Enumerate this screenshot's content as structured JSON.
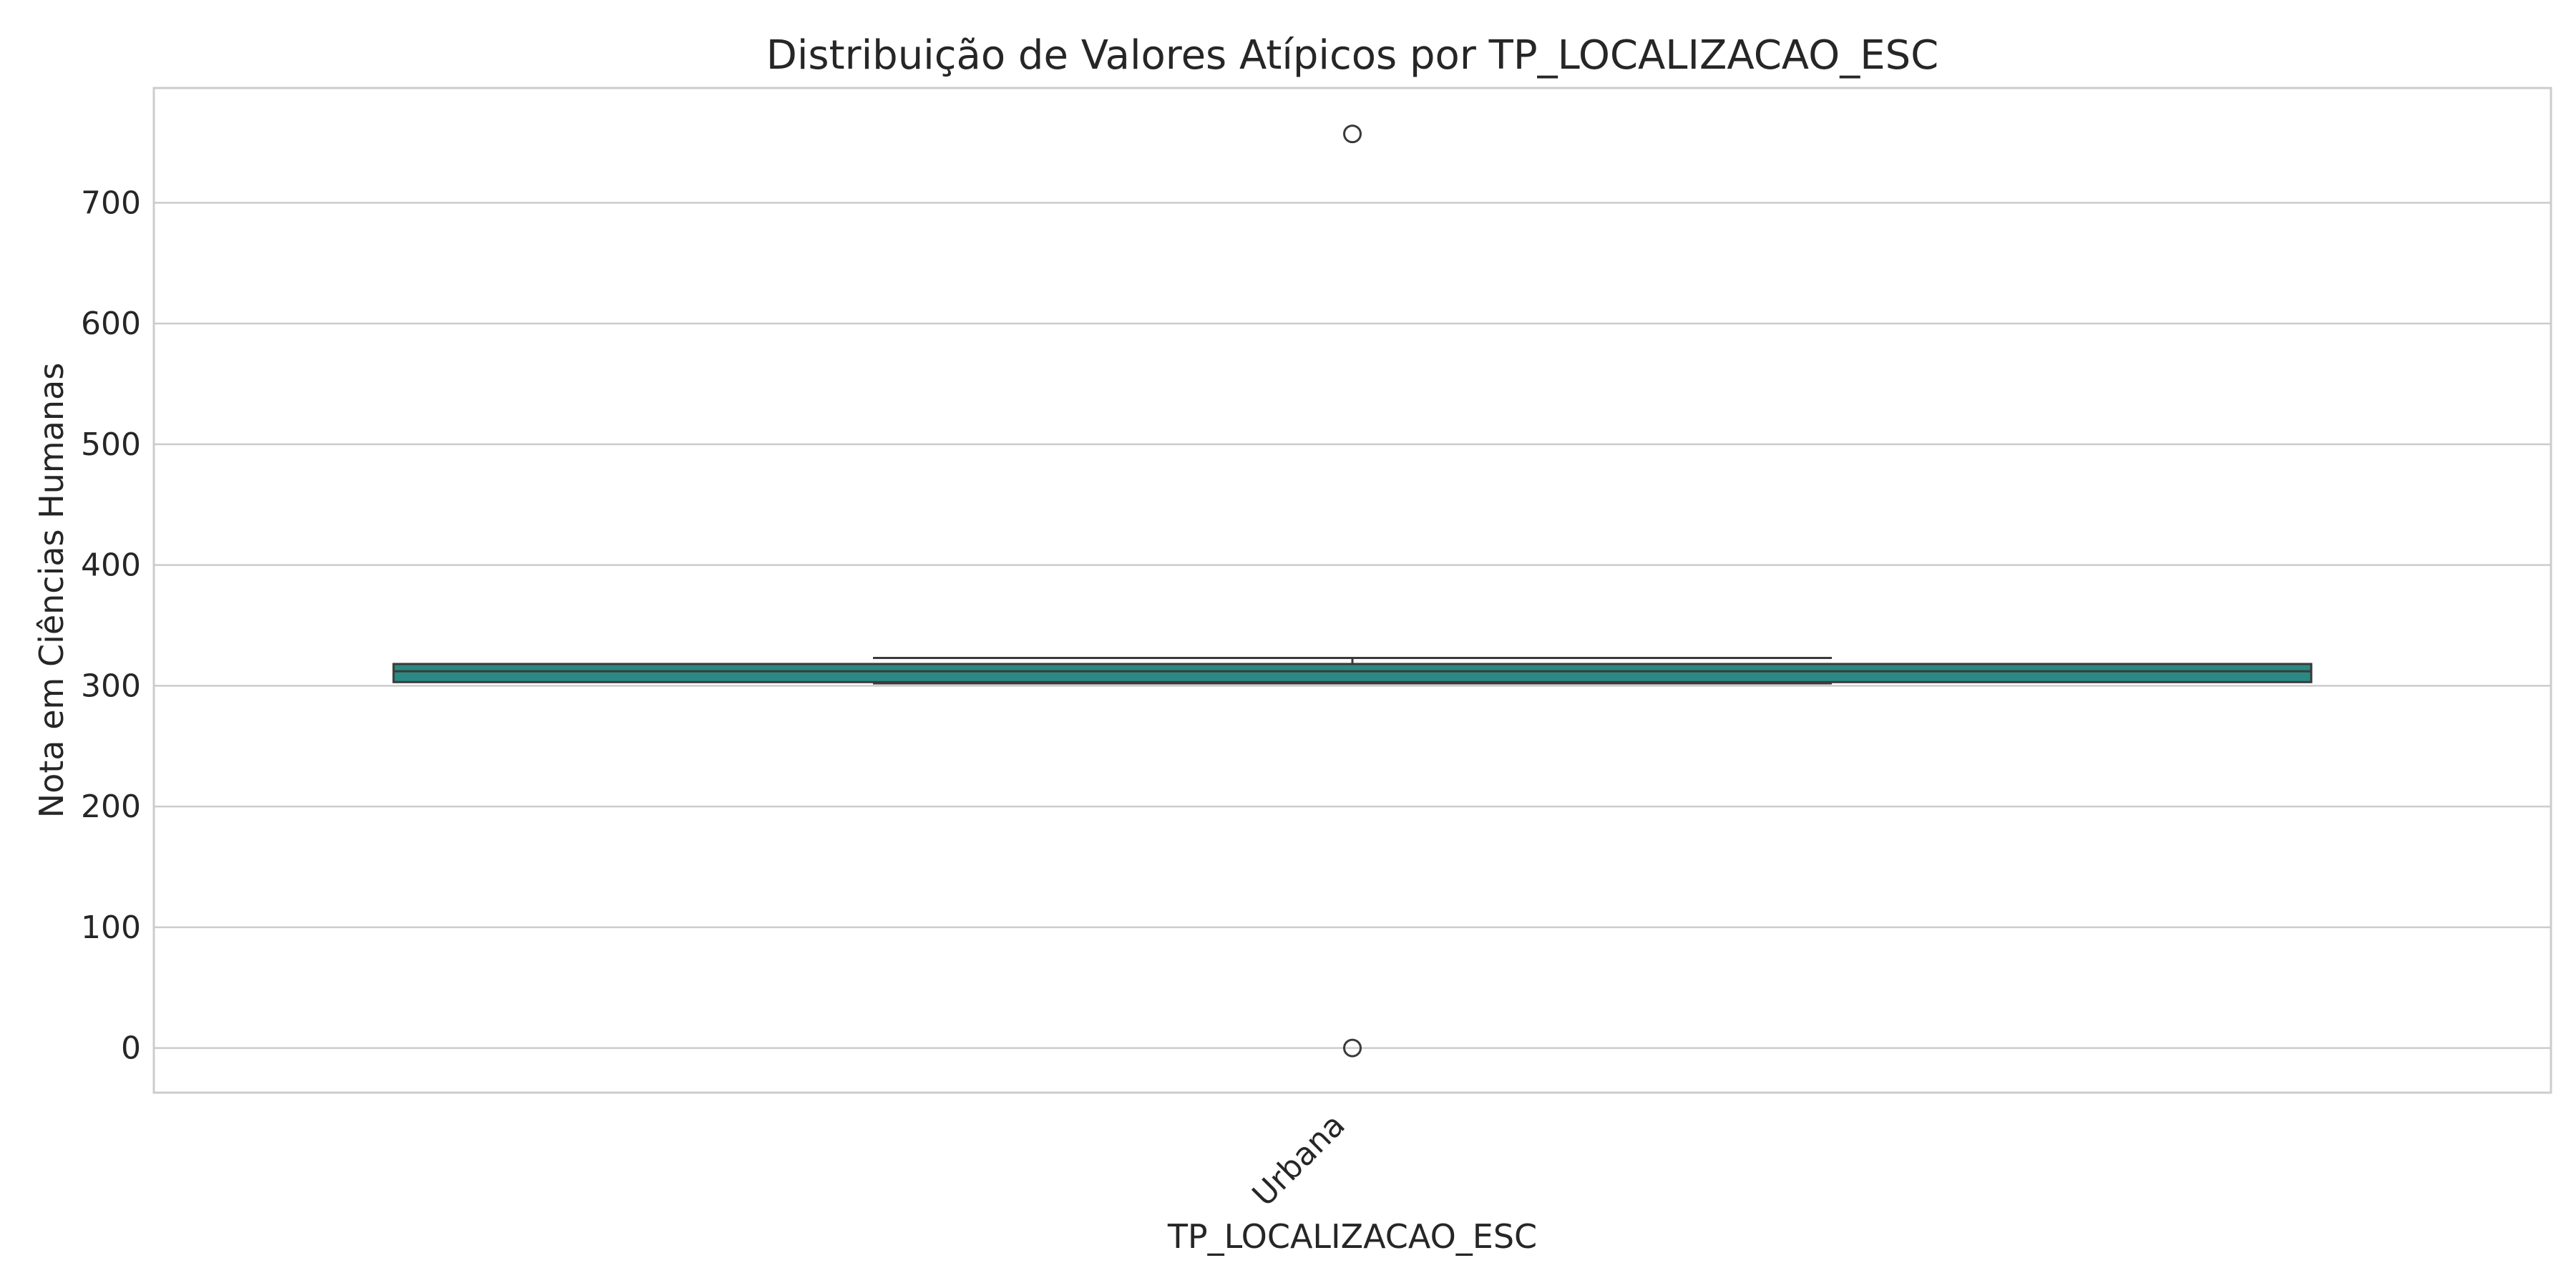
{
  "chart_data": {
    "type": "box",
    "title": "Distribuição de Valores Atípicos por TP_LOCALIZACAO_ESC",
    "xlabel": "TP_LOCALIZACAO_ESC",
    "ylabel": "Nota em Ciências Humanas",
    "ylim": [
      -37,
      795
    ],
    "yticks": [
      0,
      100,
      200,
      300,
      400,
      500,
      600,
      700
    ],
    "categories": [
      "Urbana"
    ],
    "boxes": [
      {
        "category": "Urbana",
        "whisker_low": 302,
        "q1": 303,
        "median": 312,
        "q3": 318,
        "whisker_high": 323,
        "outliers": [
          757,
          0
        ]
      }
    ],
    "grid": true,
    "box_color": "#2a8a83",
    "edge_color": "#3a3a3a"
  }
}
